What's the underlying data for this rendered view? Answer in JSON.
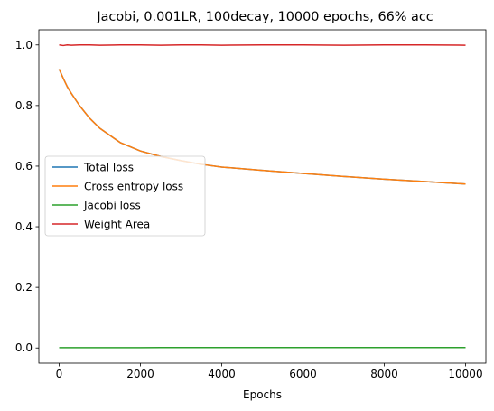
{
  "chart_data": {
    "type": "line",
    "title": "Jacobi, 0.001LR, 100decay, 10000 epochs, 66% acc",
    "xlabel": "Epochs",
    "ylabel": "",
    "xlim": [
      -500,
      10500
    ],
    "ylim": [
      -0.05,
      1.05
    ],
    "xticks": [
      0,
      2000,
      4000,
      6000,
      8000,
      10000
    ],
    "xtick_labels": [
      "0",
      "2000",
      "4000",
      "6000",
      "8000",
      "10000"
    ],
    "yticks": [
      0.0,
      0.2,
      0.4,
      0.6,
      0.8,
      1.0
    ],
    "ytick_labels": [
      "0.0",
      "0.2",
      "0.4",
      "0.6",
      "0.8",
      "1.0"
    ],
    "grid": false,
    "legend_position": "center-left",
    "x": [
      0,
      100,
      200,
      300,
      500,
      750,
      1000,
      1500,
      2000,
      2500,
      3000,
      3500,
      4000,
      5000,
      6000,
      7000,
      8000,
      9000,
      10000
    ],
    "series": [
      {
        "name": "Total loss",
        "color": "#1f77b4",
        "values": [
          0.92,
          0.89,
          0.862,
          0.84,
          0.8,
          0.758,
          0.725,
          0.678,
          0.65,
          0.632,
          0.618,
          0.606,
          0.597,
          0.586,
          0.576,
          0.566,
          0.557,
          0.549,
          0.541
        ]
      },
      {
        "name": "Cross entropy loss",
        "color": "#ff7f0e",
        "values": [
          0.92,
          0.89,
          0.862,
          0.84,
          0.8,
          0.758,
          0.725,
          0.678,
          0.65,
          0.632,
          0.618,
          0.606,
          0.597,
          0.586,
          0.576,
          0.566,
          0.557,
          0.549,
          0.541
        ]
      },
      {
        "name": "Jacobi loss",
        "color": "#2ca02c",
        "values": [
          0.001,
          0.001,
          0.001,
          0.001,
          0.001,
          0.001,
          0.001,
          0.001,
          0.001,
          0.0015,
          0.0015,
          0.0015,
          0.0015,
          0.0015,
          0.0015,
          0.0015,
          0.0015,
          0.0015,
          0.0015
        ]
      },
      {
        "name": "Weight Area",
        "color": "#d62728",
        "values": [
          1.0,
          0.998,
          1.0,
          0.999,
          1.0,
          1.0,
          0.999,
          1.0,
          1.0,
          0.999,
          1.0,
          1.0,
          0.999,
          1.0,
          1.0,
          0.999,
          1.0,
          1.0,
          0.999
        ]
      }
    ]
  }
}
